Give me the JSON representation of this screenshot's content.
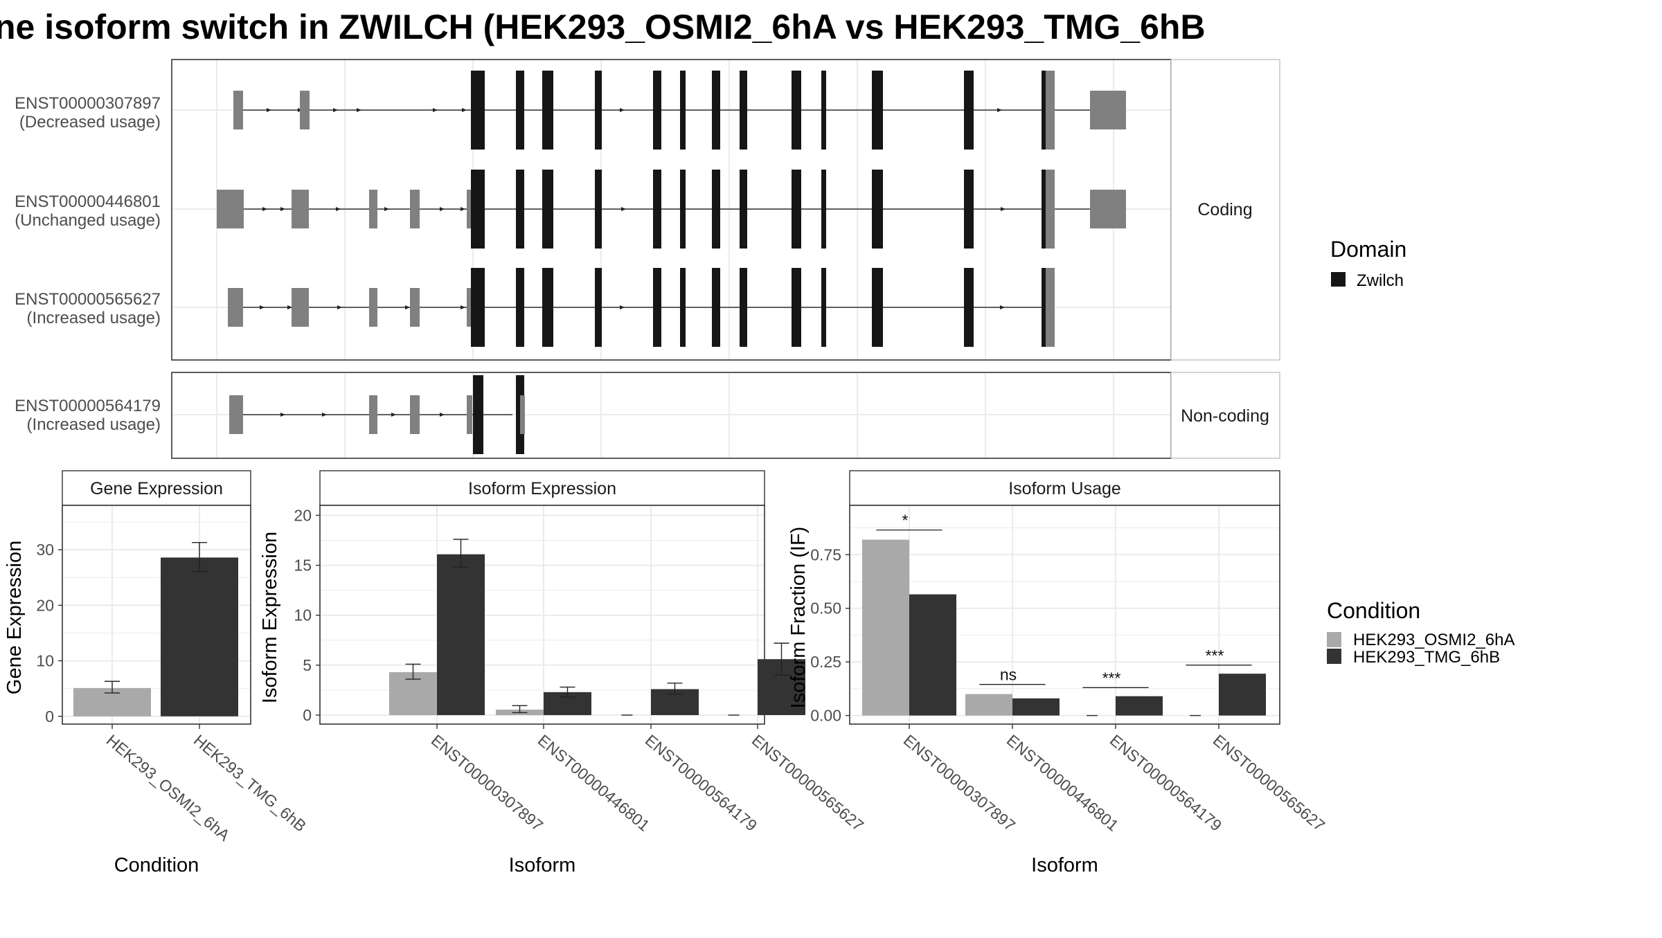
{
  "title": "ne isoform switch in ZWILCH (HEK293_OSMI2_6hA vs HEK293_TMG_6hB",
  "colors": {
    "condition_a": "#A9A9A9",
    "condition_b": "#333333",
    "domain": "#161616",
    "exon": "#808080",
    "panel_border": "#333333",
    "strip_border": "#B8B8B8",
    "grid": "#EBEBEB"
  },
  "transcripts": {
    "facets": [
      {
        "label": "Coding",
        "tracks": [
          {
            "id": "ENST00000307897",
            "usage": "(Decreased usage)"
          },
          {
            "id": "ENST00000446801",
            "usage": "(Unchanged usage)"
          },
          {
            "id": "ENST00000565627",
            "usage": "(Increased usage)"
          }
        ]
      },
      {
        "label": "Non-coding",
        "tracks": [
          {
            "id": "ENST00000564179",
            "usage": "(Increased usage)"
          }
        ]
      }
    ]
  },
  "legend_domain": {
    "title": "Domain",
    "items": [
      "Zwilch"
    ]
  },
  "legend_condition": {
    "title": "Condition",
    "items": [
      "HEK293_OSMI2_6hA",
      "HEK293_TMG_6hB"
    ]
  },
  "chart_data": [
    {
      "type": "bar",
      "strip": "Gene Expression",
      "ylabel": "Gene Expression",
      "xlabel": "Condition",
      "categories": [
        "HEK293_OSMI2_6hA",
        "HEK293_TMG_6hB"
      ],
      "values": [
        5.1,
        28.6
      ],
      "error": [
        [
          4.2,
          6.3
        ],
        [
          26.1,
          31.3
        ]
      ],
      "ylim": [
        -1.4,
        38
      ],
      "yticks": [
        "0",
        "10",
        "20",
        "30"
      ]
    },
    {
      "type": "bar",
      "strip": "Isoform Expression",
      "ylabel": "Isoform Expression",
      "xlabel": "Isoform",
      "categories": [
        "ENST00000307897",
        "ENST00000446801",
        "ENST00000564179",
        "ENST00000565627"
      ],
      "series": [
        {
          "name": "HEK293_OSMI2_6hA",
          "values": [
            4.3,
            0.55,
            0.0,
            0.0
          ],
          "error": [
            [
              3.6,
              5.1
            ],
            [
              0.25,
              0.95
            ],
            [
              0.0,
              0.0
            ],
            [
              0.0,
              0.0
            ]
          ]
        },
        {
          "name": "HEK293_TMG_6hB",
          "values": [
            16.1,
            2.3,
            2.6,
            5.6
          ],
          "error": [
            [
              14.8,
              17.6
            ],
            [
              1.8,
              2.8
            ],
            [
              2.1,
              3.2
            ],
            [
              4.0,
              7.2
            ]
          ]
        }
      ],
      "ylim": [
        -0.9,
        21
      ],
      "yticks": [
        "0",
        "5",
        "10",
        "15",
        "20"
      ]
    },
    {
      "type": "bar",
      "strip": "Isoform Usage",
      "ylabel": "Isoform Fraction (IF)",
      "xlabel": "Isoform",
      "categories": [
        "ENST00000307897",
        "ENST00000446801",
        "ENST00000564179",
        "ENST00000565627"
      ],
      "series": [
        {
          "name": "HEK293_OSMI2_6hA",
          "values": [
            0.82,
            0.1,
            0.0,
            0.0
          ]
        },
        {
          "name": "HEK293_TMG_6hB",
          "values": [
            0.565,
            0.08,
            0.09,
            0.195
          ]
        }
      ],
      "significance": [
        "*",
        "ns",
        "***",
        "***"
      ],
      "significance_level": [
        0.865,
        0.145,
        0.13,
        0.235
      ],
      "ylim": [
        -0.04,
        0.98
      ],
      "yticks": [
        "0.00",
        "0.25",
        "0.50",
        "0.75"
      ]
    }
  ]
}
